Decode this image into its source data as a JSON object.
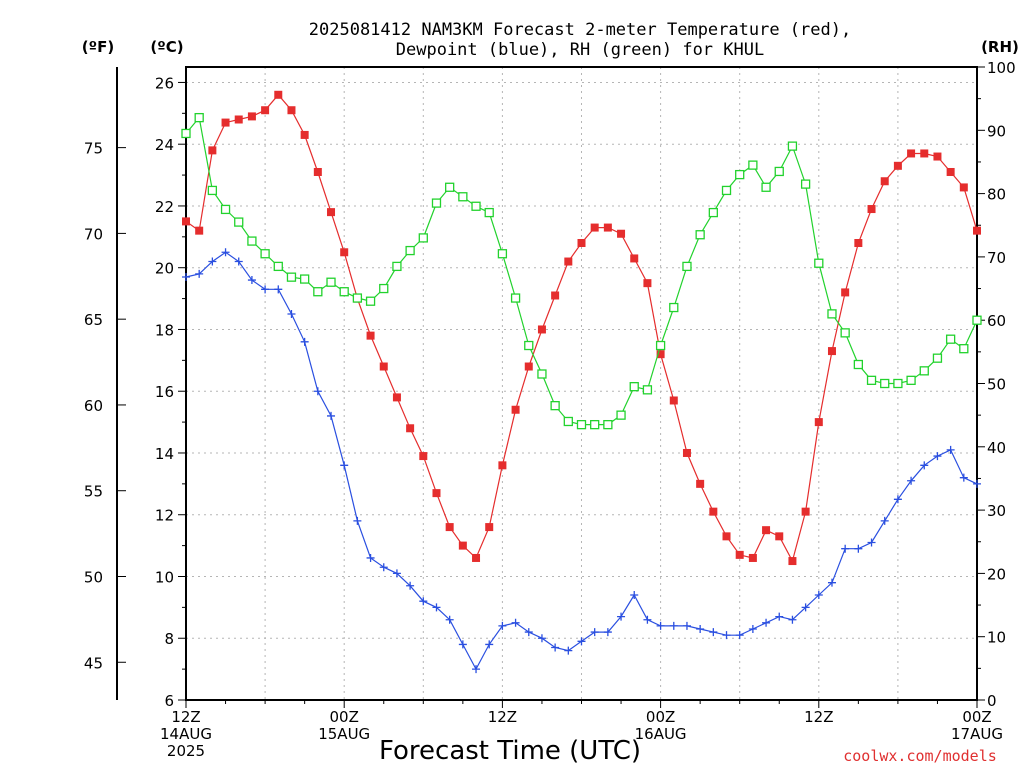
{
  "chart_data": {
    "type": "line",
    "title_lines": [
      "2025081412 NAM3KM Forecast 2-meter Temperature (red),",
      "Dewpoint (blue), RH (green) for KHUL"
    ],
    "xlabel": "Forecast Time (UTC)",
    "credit": "coolwx.com/models",
    "unit_labels": {
      "fahrenheit": "(ºF)",
      "celsius": "(ºC)",
      "rh": "(RH)"
    },
    "x_range_hours": [
      0,
      60
    ],
    "x_ticks": [
      {
        "hour": 0,
        "lines": [
          "12Z",
          "14AUG",
          "2025"
        ]
      },
      {
        "hour": 12,
        "lines": [
          "00Z",
          "15AUG"
        ]
      },
      {
        "hour": 24,
        "lines": [
          "12Z"
        ]
      },
      {
        "hour": 36,
        "lines": [
          "00Z",
          "16AUG"
        ]
      },
      {
        "hour": 48,
        "lines": [
          "12Z"
        ]
      },
      {
        "hour": 60,
        "lines": [
          "00Z",
          "17AUG"
        ]
      }
    ],
    "y_celsius": {
      "range": [
        6,
        26.5
      ],
      "ticks": [
        6,
        8,
        10,
        12,
        14,
        16,
        18,
        20,
        22,
        24,
        26
      ]
    },
    "y_fahrenheit": {
      "ticks": [
        45,
        50,
        55,
        60,
        65,
        70,
        75
      ]
    },
    "y_rh": {
      "range": [
        0,
        100
      ],
      "ticks": [
        0,
        10,
        20,
        30,
        40,
        50,
        60,
        70,
        80,
        90,
        100
      ]
    },
    "grid": true,
    "series": [
      {
        "name": "2-meter Temperature",
        "color": "#e52d2d",
        "marker": "filled-square",
        "axis": "celsius",
        "x": [
          0,
          1,
          2,
          3,
          4,
          5,
          6,
          7,
          8,
          9,
          10,
          11,
          12,
          13,
          14,
          15,
          16,
          17,
          18,
          19,
          20,
          21,
          22,
          23,
          24,
          25,
          26,
          27,
          28,
          29,
          30,
          31,
          32,
          33,
          34,
          35,
          36,
          37,
          38,
          39,
          40,
          41,
          42,
          43,
          44,
          45,
          46,
          47,
          48,
          49,
          50,
          51,
          52,
          53,
          54,
          55,
          56,
          57,
          58,
          59,
          60
        ],
        "values": [
          21.5,
          21.2,
          23.8,
          24.7,
          24.8,
          24.9,
          25.1,
          25.6,
          25.1,
          24.3,
          23.1,
          21.8,
          20.5,
          19.0,
          17.8,
          16.8,
          15.8,
          14.8,
          13.9,
          12.7,
          11.6,
          11.0,
          10.6,
          11.6,
          13.6,
          15.4,
          16.8,
          18.0,
          19.1,
          20.2,
          20.8,
          21.3,
          21.3,
          21.1,
          20.3,
          19.5,
          17.2,
          15.7,
          14.0,
          13.0,
          12.1,
          11.3,
          10.7,
          10.6,
          11.5,
          11.3,
          10.5,
          12.1,
          15.0,
          17.3,
          19.2,
          20.8,
          21.9,
          22.8,
          23.3,
          23.7,
          23.7,
          23.6,
          23.1,
          22.6,
          21.2
        ]
      },
      {
        "name": "Dewpoint",
        "color": "#2a4fe0",
        "marker": "plus",
        "axis": "celsius",
        "x": [
          0,
          1,
          2,
          3,
          4,
          5,
          6,
          7,
          8,
          9,
          10,
          11,
          12,
          13,
          14,
          15,
          16,
          17,
          18,
          19,
          20,
          21,
          22,
          23,
          24,
          25,
          26,
          27,
          28,
          29,
          30,
          31,
          32,
          33,
          34,
          35,
          36,
          37,
          38,
          39,
          40,
          41,
          42,
          43,
          44,
          45,
          46,
          47,
          48,
          49,
          50,
          51,
          52,
          53,
          54,
          55,
          56,
          57,
          58,
          59,
          60
        ],
        "values": [
          19.7,
          19.8,
          20.2,
          20.5,
          20.2,
          19.6,
          19.3,
          19.3,
          18.5,
          17.6,
          16.0,
          15.2,
          13.6,
          11.8,
          10.6,
          10.3,
          10.1,
          9.7,
          9.2,
          9.0,
          8.6,
          7.8,
          7.0,
          7.8,
          8.4,
          8.5,
          8.2,
          8.0,
          7.7,
          7.6,
          7.9,
          8.2,
          8.2,
          8.7,
          9.4,
          8.6,
          8.4,
          8.4,
          8.4,
          8.3,
          8.2,
          8.1,
          8.1,
          8.3,
          8.5,
          8.7,
          8.6,
          9.0,
          9.4,
          9.8,
          10.9,
          10.9,
          11.1,
          11.8,
          12.5,
          13.1,
          13.6,
          13.9,
          14.1,
          13.2,
          13.0
        ]
      },
      {
        "name": "RH",
        "color": "#22d22d",
        "marker": "open-square",
        "axis": "rh",
        "x": [
          0,
          1,
          2,
          3,
          4,
          5,
          6,
          7,
          8,
          9,
          10,
          11,
          12,
          13,
          14,
          15,
          16,
          17,
          18,
          19,
          20,
          21,
          22,
          23,
          24,
          25,
          26,
          27,
          28,
          29,
          30,
          31,
          32,
          33,
          34,
          35,
          36,
          37,
          38,
          39,
          40,
          41,
          42,
          43,
          44,
          45,
          46,
          47,
          48,
          49,
          50,
          51,
          52,
          53,
          54,
          55,
          56,
          57,
          58,
          59,
          60
        ],
        "values": [
          89.5,
          92.0,
          80.5,
          77.5,
          75.5,
          72.5,
          70.5,
          68.5,
          66.8,
          66.5,
          64.5,
          66.0,
          64.5,
          63.5,
          63.0,
          65.0,
          68.5,
          71.0,
          73.0,
          78.5,
          81.0,
          79.5,
          78.0,
          77.0,
          70.5,
          63.5,
          56.0,
          51.5,
          46.5,
          44.0,
          43.5,
          43.5,
          43.5,
          45.0,
          49.5,
          49.0,
          56.0,
          62.0,
          68.5,
          73.5,
          77.0,
          80.5,
          83.0,
          84.5,
          81.0,
          83.5,
          87.5,
          81.5,
          69.0,
          61.0,
          58.0,
          53.0,
          50.5,
          50.0,
          50.0,
          50.5,
          52.0,
          54.0,
          57.0,
          55.5,
          60.0
        ]
      }
    ]
  }
}
